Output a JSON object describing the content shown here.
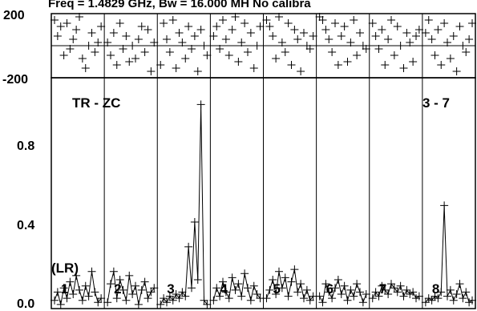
{
  "chart_data": {
    "type": "scatter",
    "title": "Freq = 1.4829 GHz, Bw = 16.000 MH   No calibra",
    "panel_labels": [
      "1",
      "2",
      "3",
      "4",
      "5",
      "6",
      "7",
      "8"
    ],
    "annotations": {
      "left": "TR - ZC",
      "right": "3 - 7",
      "polarization": "(LR)"
    },
    "phase_axis": {
      "ticks": [
        "200",
        "-200"
      ],
      "range": [
        -200,
        200
      ]
    },
    "amp_axis": {
      "ticks": [
        "0.8",
        "0.4",
        "0.0"
      ],
      "range": [
        0,
        1.12
      ]
    },
    "phase_series": [
      [
        160,
        60,
        120,
        -60,
        140,
        -20,
        40,
        100,
        180,
        -80,
        -140,
        0,
        80,
        -40,
        20,
        120
      ],
      [
        20,
        -60,
        80,
        -120,
        140,
        -20,
        60,
        -100,
        0,
        -80,
        40,
        120,
        -40,
        100,
        -160,
        20
      ],
      [
        -120,
        140,
        40,
        -40,
        160,
        -140,
        80,
        20,
        -80,
        120,
        -20,
        60,
        -160,
        100,
        0,
        -60
      ],
      [
        60,
        120,
        -20,
        160,
        40,
        -60,
        100,
        180,
        -100,
        20,
        140,
        -40,
        80,
        -140,
        0,
        120
      ],
      [
        160,
        120,
        60,
        -80,
        180,
        20,
        -40,
        140,
        -120,
        100,
        40,
        -160,
        80,
        0,
        -20,
        60
      ],
      [
        180,
        160,
        100,
        40,
        -40,
        140,
        -120,
        60,
        120,
        -100,
        20,
        160,
        -60,
        80,
        0,
        -20
      ],
      [
        140,
        60,
        -20,
        100,
        -120,
        40,
        160,
        -60,
        120,
        0,
        -140,
        80,
        20,
        -100,
        60,
        100
      ],
      [
        80,
        160,
        40,
        -60,
        100,
        -120,
        140,
        20,
        -80,
        60,
        -160,
        120,
        0,
        -40,
        40,
        140
      ]
    ],
    "amp_series": [
      [
        0.04,
        0.08,
        0.02,
        0.1,
        0.05,
        0.13,
        0.07,
        0.16,
        0.09,
        0.04,
        0.11,
        0.06,
        0.18,
        0.08,
        0.03,
        0.05
      ],
      [
        0.03,
        0.12,
        0.18,
        0.05,
        0.14,
        0.09,
        0.04,
        0.16,
        0.07,
        0.11,
        0.02,
        0.09,
        0.13,
        0.05,
        0.08,
        0.1
      ],
      [
        0.02,
        0.05,
        0.03,
        0.06,
        0.04,
        0.07,
        0.05,
        0.08,
        0.06,
        0.3,
        0.1,
        0.42,
        0.14,
        0.99,
        0.04,
        0.02
      ],
      [
        0.04,
        0.1,
        0.06,
        0.13,
        0.08,
        0.05,
        0.15,
        0.09,
        0.12,
        0.06,
        0.17,
        0.1,
        0.04,
        0.11,
        0.07,
        0.05
      ],
      [
        0.05,
        0.09,
        0.14,
        0.07,
        0.18,
        0.1,
        0.15,
        0.06,
        0.13,
        0.19,
        0.08,
        0.12,
        0.05,
        0.09,
        0.04,
        0.06
      ],
      [
        0.06,
        0.03,
        0.12,
        0.08,
        0.05,
        0.1,
        0.14,
        0.07,
        0.11,
        0.04,
        0.09,
        0.06,
        0.12,
        0.08,
        0.03,
        0.07
      ],
      [
        0.05,
        0.08,
        0.06,
        0.11,
        0.09,
        0.07,
        0.12,
        0.1,
        0.08,
        0.11,
        0.06,
        0.09,
        0.07,
        0.08,
        0.05,
        0.06
      ],
      [
        0.03,
        0.05,
        0.04,
        0.06,
        0.05,
        0.08,
        0.5,
        0.06,
        0.09,
        0.04,
        0.07,
        0.12,
        0.05,
        0.08,
        0.03,
        0.04
      ]
    ]
  }
}
